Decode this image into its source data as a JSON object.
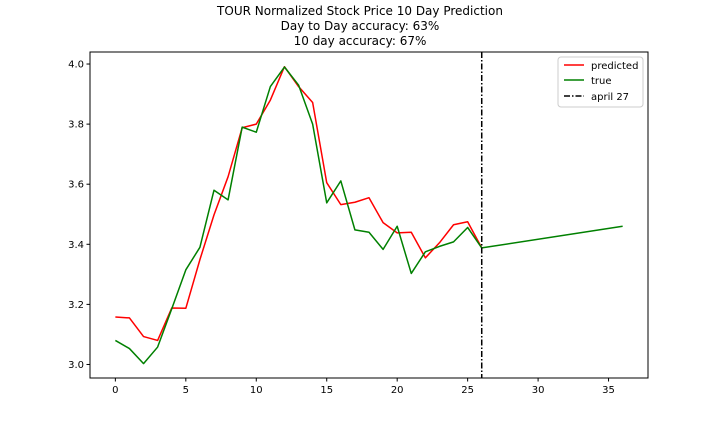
{
  "chart_data": {
    "type": "line",
    "title": "TOUR Normalized Stock Price 10 Day Prediction",
    "subtitle_lines": [
      "Day to Day accuracy: 63%",
      "10 day accuracy: 67%"
    ],
    "xlabel": "",
    "ylabel": "",
    "xlim": [
      -1.8,
      37.8
    ],
    "ylim": [
      2.955,
      4.04
    ],
    "x_ticks": [
      0,
      5,
      10,
      15,
      20,
      25,
      30,
      35
    ],
    "y_ticks": [
      3.0,
      3.2,
      3.4,
      3.6,
      3.8,
      4.0
    ],
    "y_tick_labels": [
      "3.0",
      "3.2",
      "3.4",
      "3.6",
      "3.8",
      "4.0"
    ],
    "grid": false,
    "legend_position": "top-right",
    "series": [
      {
        "name": "predicted",
        "color": "#ff0000",
        "x": [
          0,
          1,
          2,
          3,
          4,
          5,
          6,
          7,
          8,
          9,
          10,
          11,
          12,
          13,
          14,
          15,
          16,
          17,
          18,
          19,
          20,
          21,
          22,
          23,
          24,
          25,
          26
        ],
        "y": [
          3.158,
          3.155,
          3.093,
          3.08,
          3.188,
          3.187,
          3.349,
          3.498,
          3.625,
          3.788,
          3.8,
          3.88,
          3.991,
          3.925,
          3.872,
          3.605,
          3.532,
          3.54,
          3.555,
          3.472,
          3.438,
          3.44,
          3.355,
          3.405,
          3.465,
          3.475,
          3.388
        ]
      },
      {
        "name": "true",
        "color": "#008000",
        "x": [
          0,
          1,
          2,
          3,
          4,
          5,
          6,
          7,
          8,
          9,
          10,
          11,
          12,
          13,
          14,
          15,
          16,
          17,
          18,
          19,
          20,
          21,
          22,
          23,
          24,
          25,
          26,
          36
        ],
        "y": [
          3.08,
          3.053,
          3.003,
          3.058,
          3.185,
          3.315,
          3.39,
          3.58,
          3.548,
          3.79,
          3.773,
          3.925,
          3.99,
          3.93,
          3.8,
          3.538,
          3.611,
          3.448,
          3.44,
          3.383,
          3.46,
          3.303,
          3.375,
          3.393,
          3.408,
          3.456,
          3.388,
          3.46
        ]
      }
    ],
    "vline": {
      "name": "april 27",
      "x": 26,
      "color": "#000000",
      "style": "dashdot"
    }
  }
}
